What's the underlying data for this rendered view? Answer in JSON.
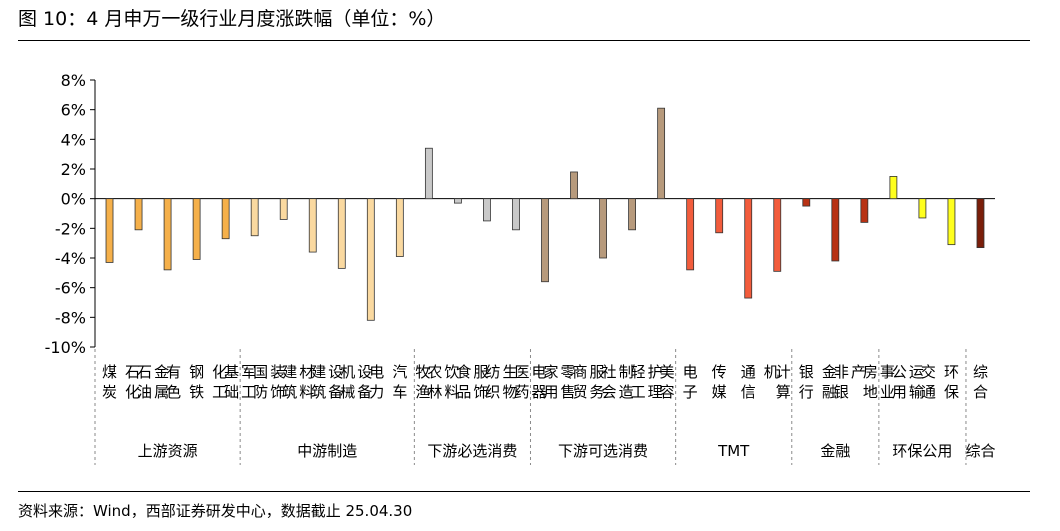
{
  "title": "图 10：4 月申万一级行业月度涨跌幅（单位：%）",
  "source": "资料来源：Wind，西部证券研发中心，数据截止 25.04.30",
  "chart_data": {
    "type": "bar",
    "title": "",
    "xlabel": "",
    "ylabel": "",
    "ylim": [
      -10,
      8
    ],
    "yticks": [
      8,
      6,
      4,
      2,
      0,
      -2,
      -4,
      -6,
      -8,
      -10
    ],
    "ytick_labels": [
      "8%",
      "6%",
      "4%",
      "2%",
      "0%",
      "-2%",
      "-4%",
      "-6%",
      "-8%",
      "-10%"
    ],
    "grid": false,
    "legend": "none",
    "groups": [
      {
        "name": "上游资源",
        "color": "#f5b04a",
        "items": [
          {
            "label": "煤炭",
            "value": -4.3
          },
          {
            "label": "石油石化",
            "value": -2.1
          },
          {
            "label": "有色金属",
            "value": -4.8
          },
          {
            "label": "钢铁",
            "value": -4.1
          },
          {
            "label": "基础化工",
            "value": -2.7
          }
        ]
      },
      {
        "name": "中游制造",
        "color": "#fad9a0",
        "items": [
          {
            "label": "国防军工",
            "value": -2.5
          },
          {
            "label": "建筑装饰",
            "value": -1.4
          },
          {
            "label": "建筑材料",
            "value": -3.6
          },
          {
            "label": "机械设备",
            "value": -4.7
          },
          {
            "label": "电力设备",
            "value": -8.2
          },
          {
            "label": "汽车",
            "value": -3.9
          }
        ]
      },
      {
        "name": "下游必选消费",
        "color": "#c9c9c9",
        "items": [
          {
            "label": "农林牧渔",
            "value": 3.4
          },
          {
            "label": "食品饮料",
            "value": -0.3
          },
          {
            "label": "纺织服饰",
            "value": -1.5
          },
          {
            "label": "医药生物",
            "value": -2.1
          }
        ]
      },
      {
        "name": "下游可选消费",
        "color": "#b79a7c",
        "items": [
          {
            "label": "家用电器",
            "value": -5.6
          },
          {
            "label": "商贸零售",
            "value": 1.8
          },
          {
            "label": "社会服务",
            "value": -4.0
          },
          {
            "label": "轻工制造",
            "value": -2.1
          },
          {
            "label": "美容护理",
            "value": 6.1
          }
        ]
      },
      {
        "name": "TMT",
        "color": "#f25c3c",
        "items": [
          {
            "label": "电子",
            "value": -4.8
          },
          {
            "label": "传媒",
            "value": -2.3
          },
          {
            "label": "通信",
            "value": -6.7
          },
          {
            "label": "计算机",
            "value": -4.9
          }
        ]
      },
      {
        "name": "金融",
        "color": "#b83214",
        "items": [
          {
            "label": "银行",
            "value": -0.5
          },
          {
            "label": "非银金融",
            "value": -4.2
          },
          {
            "label": "房地产",
            "value": -1.6
          }
        ]
      },
      {
        "name": "环保公用",
        "color": "#ffff1e",
        "items": [
          {
            "label": "公用事业",
            "value": 1.5
          },
          {
            "label": "交通运输",
            "value": -1.3
          },
          {
            "label": "环保",
            "value": -3.1
          }
        ]
      },
      {
        "name": "综合",
        "color": "#7a1e0a",
        "items": [
          {
            "label": "综合",
            "value": -3.3
          }
        ]
      }
    ]
  }
}
